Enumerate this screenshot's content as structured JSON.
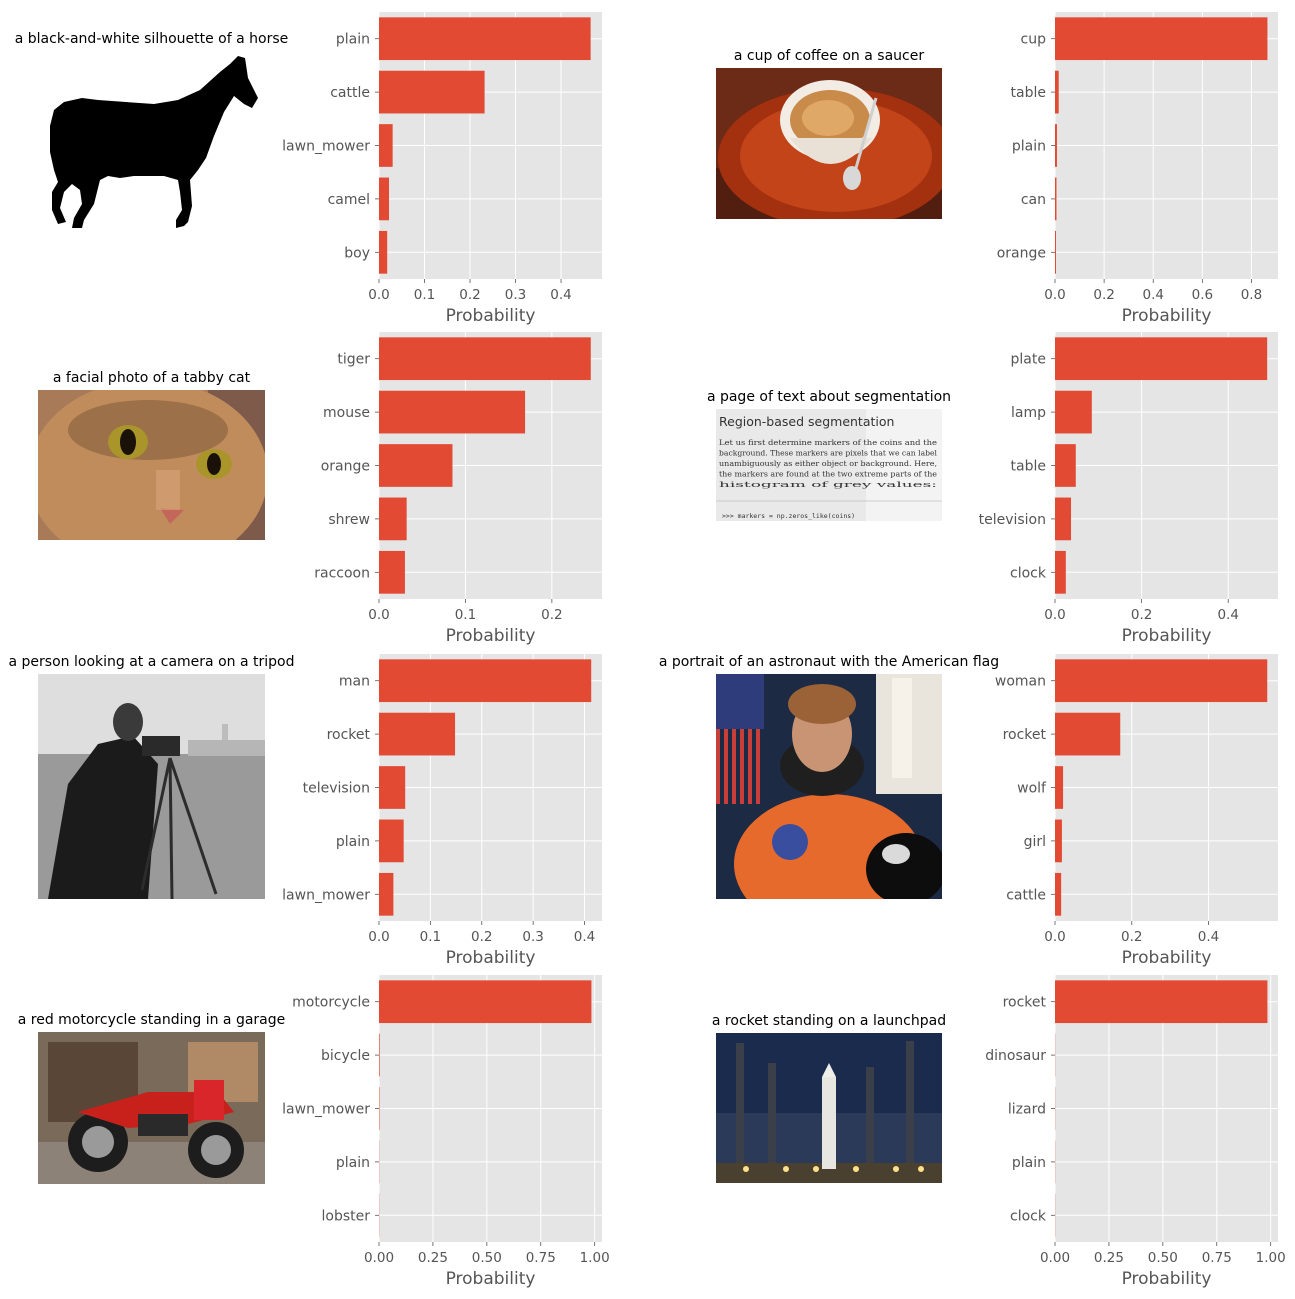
{
  "chart_data": [
    {
      "type": "bar",
      "caption": "a black-and-white silhouette of a horse",
      "image": "horse-silhouette",
      "categories": [
        "plain",
        "cattle",
        "lawn_mower",
        "camel",
        "boy"
      ],
      "values": [
        0.465,
        0.232,
        0.03,
        0.022,
        0.018
      ],
      "xlabel": "Probability",
      "xlim": [
        0,
        0.49
      ],
      "xticks": [
        0.0,
        0.1,
        0.2,
        0.3,
        0.4
      ],
      "xtick_labels": [
        "0.0",
        "0.1",
        "0.2",
        "0.3",
        "0.4"
      ]
    },
    {
      "type": "bar",
      "caption": "a cup of coffee on a saucer",
      "image": "coffee-cup",
      "categories": [
        "cup",
        "table",
        "plain",
        "can",
        "orange"
      ],
      "values": [
        0.865,
        0.015,
        0.008,
        0.006,
        0.004
      ],
      "xlabel": "Probability",
      "xlim": [
        0,
        0.908
      ],
      "xticks": [
        0.0,
        0.2,
        0.4,
        0.6,
        0.8
      ],
      "xtick_labels": [
        "0.0",
        "0.2",
        "0.4",
        "0.6",
        "0.8"
      ]
    },
    {
      "type": "bar",
      "caption": "a facial photo of a tabby cat",
      "image": "tabby-cat",
      "categories": [
        "tiger",
        "mouse",
        "orange",
        "shrew",
        "raccoon"
      ],
      "values": [
        0.245,
        0.169,
        0.085,
        0.032,
        0.03
      ],
      "xlabel": "Probability",
      "xlim": [
        0,
        0.258
      ],
      "xticks": [
        0.0,
        0.1,
        0.2
      ],
      "xtick_labels": [
        "0.0",
        "0.1",
        "0.2"
      ]
    },
    {
      "type": "bar",
      "caption": "a page of text about segmentation",
      "image": "text-page",
      "categories": [
        "plate",
        "lamp",
        "table",
        "television",
        "clock"
      ],
      "values": [
        0.49,
        0.085,
        0.048,
        0.037,
        0.025
      ],
      "xlabel": "Probability",
      "xlim": [
        0,
        0.515
      ],
      "xticks": [
        0.0,
        0.2,
        0.4
      ],
      "xtick_labels": [
        "0.0",
        "0.2",
        "0.4"
      ],
      "image_heading": "Region-based segmentation",
      "image_body": [
        "Let us first determine markers of the coins and the",
        "background. These markers are pixels that we can label",
        "unambiguously as either object or background. Here,",
        "the markers are found at the two extreme parts of the",
        "histogram of grey values:"
      ],
      "image_code": ">>> markers = np.zeros_like(coins)"
    },
    {
      "type": "bar",
      "caption": "a person looking at a camera on a tripod",
      "image": "cameraman",
      "categories": [
        "man",
        "rocket",
        "television",
        "plain",
        "lawn_mower"
      ],
      "values": [
        0.413,
        0.148,
        0.051,
        0.048,
        0.028
      ],
      "xlabel": "Probability",
      "xlim": [
        0,
        0.434
      ],
      "xticks": [
        0.0,
        0.1,
        0.2,
        0.3,
        0.4
      ],
      "xtick_labels": [
        "0.0",
        "0.1",
        "0.2",
        "0.3",
        "0.4"
      ]
    },
    {
      "type": "bar",
      "caption": "a portrait of an astronaut with the American flag",
      "image": "astronaut",
      "categories": [
        "woman",
        "rocket",
        "wolf",
        "girl",
        "cattle"
      ],
      "values": [
        0.553,
        0.17,
        0.021,
        0.018,
        0.016
      ],
      "xlabel": "Probability",
      "xlim": [
        0,
        0.581
      ],
      "xticks": [
        0.0,
        0.2,
        0.4
      ],
      "xtick_labels": [
        "0.0",
        "0.2",
        "0.4"
      ]
    },
    {
      "type": "bar",
      "caption": "a red motorcycle standing in a garage",
      "image": "motorcycle",
      "categories": [
        "motorcycle",
        "bicycle",
        "lawn_mower",
        "plain",
        "lobster"
      ],
      "values": [
        0.985,
        0.003,
        0.002,
        0.001,
        0.001
      ],
      "xlabel": "Probability",
      "xlim": [
        0,
        1.034
      ],
      "xticks": [
        0.0,
        0.25,
        0.5,
        0.75,
        1.0
      ],
      "xtick_labels": [
        "0.00",
        "0.25",
        "0.50",
        "0.75",
        "1.00"
      ]
    },
    {
      "type": "bar",
      "caption": "a rocket standing on a launchpad",
      "image": "rocket-launchpad",
      "categories": [
        "rocket",
        "dinosaur",
        "lizard",
        "plain",
        "clock"
      ],
      "values": [
        0.985,
        0.001,
        0.001,
        0.001,
        0.001
      ],
      "xlabel": "Probability",
      "xlim": [
        0,
        1.034
      ],
      "xticks": [
        0.0,
        0.25,
        0.5,
        0.75,
        1.0
      ],
      "xtick_labels": [
        "0.00",
        "0.25",
        "0.50",
        "0.75",
        "1.00"
      ]
    }
  ],
  "colors": {
    "bar": "#E24A33",
    "axes_background": "#E5E5E5",
    "grid": "#FFFFFF",
    "tick_text": "#555555",
    "caption_text": "#000000"
  }
}
